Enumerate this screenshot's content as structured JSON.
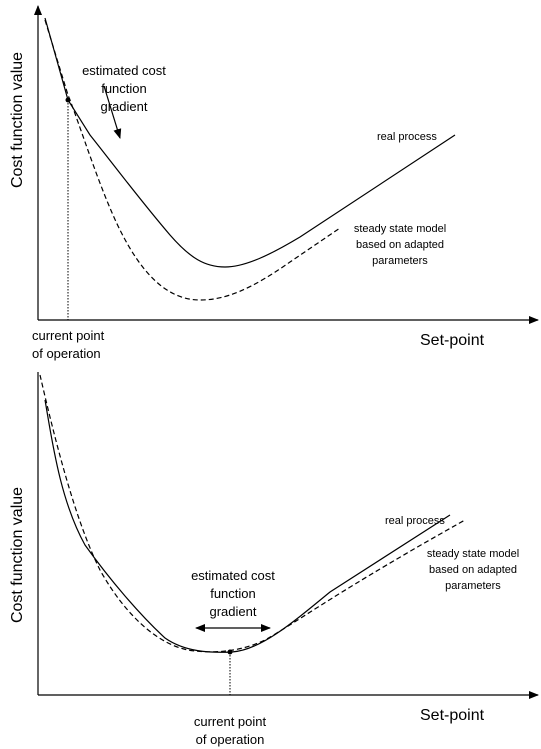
{
  "top": {
    "y_axis_label": "Cost function value",
    "x_axis_label": "Set-point",
    "operating_point": [
      "current point",
      "of operation"
    ],
    "gradient_label": [
      "estimated cost",
      "function",
      "gradient"
    ],
    "real_label": "real process",
    "model_label": [
      "steady state model",
      "based on adapted",
      "parameters"
    ]
  },
  "bottom": {
    "y_axis_label": "Cost function value",
    "x_axis_label": "Set-point",
    "operating_point": [
      "current point",
      "of operation"
    ],
    "gradient_label": [
      "estimated cost",
      "function",
      "gradient"
    ],
    "real_label": "real process",
    "model_label": [
      "steady state model",
      "based on adapted",
      "parameters"
    ]
  }
}
